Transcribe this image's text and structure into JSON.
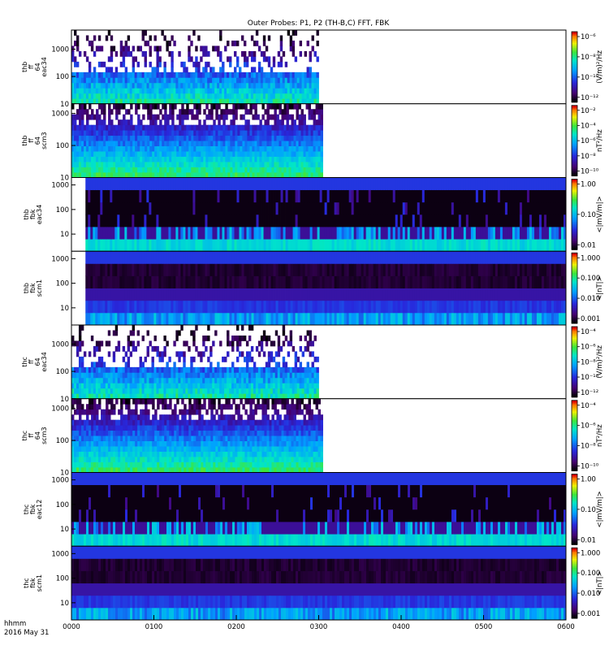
{
  "title": "Outer Probes: P1, P2 (TH-B,C) FFT, FBK",
  "footer": {
    "line1": "hhmm",
    "line2": "2016 May 31"
  },
  "chart_data": {
    "type": "heatmap",
    "x_ticks": [
      "0000",
      "0100",
      "0200",
      "0300",
      "0400",
      "0500",
      "0600"
    ],
    "x_range_hours": [
      0,
      6
    ],
    "panels": [
      {
        "id": "thb-ff-eac34",
        "ylabel": [
          "thb",
          "ff",
          "64",
          "eac34"
        ],
        "yticks": [
          "1000",
          "100",
          "10"
        ],
        "ylog": true,
        "yrange": [
          10,
          5000
        ],
        "data_end_hour": 3.0,
        "colorbar_label": "(V/m)²/Hz",
        "colorbar_ticks": [
          "10⁻⁶",
          "10⁻⁸",
          "10⁻¹⁰",
          "10⁻¹²"
        ],
        "style": "fft_e"
      },
      {
        "id": "thb-ff-scm3",
        "ylabel": [
          "thb",
          "ff",
          "64",
          "scm3"
        ],
        "yticks": [
          "1000",
          "100",
          "10"
        ],
        "ylog": true,
        "yrange": [
          10,
          2000
        ],
        "data_end_hour": 3.05,
        "colorbar_label": "nT²/Hz",
        "colorbar_ticks": [
          "10⁻²",
          "10⁻⁴",
          "10⁻⁶",
          "10⁻⁸",
          "10⁻¹⁰"
        ],
        "style": "fft_b"
      },
      {
        "id": "thb-fbk-eac34",
        "ylabel": [
          "thb",
          "fbk",
          "eac34"
        ],
        "yticks": [
          "1000",
          "100",
          "10"
        ],
        "ylog": true,
        "yrange": [
          2,
          2000
        ],
        "data_start_hour": 0.17,
        "colorbar_label": "<|mV/m|>",
        "colorbar_ticks": [
          "1.00",
          "0.10",
          "0.01"
        ],
        "style": "fbk_e"
      },
      {
        "id": "thb-fbk-scm1",
        "ylabel": [
          "thb",
          "fbk",
          "scm1"
        ],
        "yticks": [
          "1000",
          "100",
          "10"
        ],
        "ylog": true,
        "yrange": [
          2,
          2000
        ],
        "data_start_hour": 0.17,
        "colorbar_label": "<|nT|>",
        "colorbar_ticks": [
          "1.000",
          "0.100",
          "0.010",
          "0.001"
        ],
        "style": "fbk_b"
      },
      {
        "id": "thc-ff-eac34",
        "ylabel": [
          "thc",
          "ff",
          "64",
          "eac34"
        ],
        "yticks": [
          "1000",
          "100",
          "10"
        ],
        "ylog": true,
        "yrange": [
          10,
          5000
        ],
        "data_end_hour": 3.0,
        "colorbar_label": "(V/m)²/Hz",
        "colorbar_ticks": [
          "10⁻⁴",
          "10⁻⁶",
          "10⁻⁸",
          "10⁻¹⁰",
          "10⁻¹²"
        ],
        "style": "fft_e"
      },
      {
        "id": "thc-ff-scm3",
        "ylabel": [
          "thc",
          "ff",
          "64",
          "scm3"
        ],
        "yticks": [
          "1000",
          "100",
          "10"
        ],
        "ylog": true,
        "yrange": [
          10,
          2000
        ],
        "data_end_hour": 3.05,
        "colorbar_label": "nT²/Hz",
        "colorbar_ticks": [
          "10⁻⁴",
          "10⁻⁶",
          "10⁻⁸",
          "10⁻¹⁰"
        ],
        "style": "fft_b"
      },
      {
        "id": "thc-fbk-eac12",
        "ylabel": [
          "thc",
          "fbk",
          "eac12"
        ],
        "yticks": [
          "1000",
          "100",
          "10"
        ],
        "ylog": true,
        "yrange": [
          2,
          2000
        ],
        "colorbar_label": "<|mV/m|>",
        "colorbar_ticks": [
          "1.00",
          "0.10",
          "0.01"
        ],
        "style": "fbk_e"
      },
      {
        "id": "thc-fbk-scm1",
        "ylabel": [
          "thc",
          "fbk",
          "scm1"
        ],
        "yticks": [
          "1000",
          "100",
          "10"
        ],
        "ylog": true,
        "yrange": [
          2,
          2000
        ],
        "colorbar_label": "<|nT|>",
        "colorbar_ticks": [
          "1.000",
          "0.100",
          "0.010",
          "0.001"
        ],
        "style": "fbk_b"
      }
    ]
  }
}
